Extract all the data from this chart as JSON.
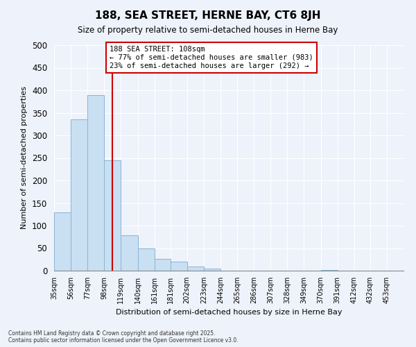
{
  "title": "188, SEA STREET, HERNE BAY, CT6 8JH",
  "subtitle": "Size of property relative to semi-detached houses in Herne Bay",
  "xlabel": "Distribution of semi-detached houses by size in Herne Bay",
  "ylabel": "Number of semi-detached properties",
  "bin_labels": [
    "35sqm",
    "56sqm",
    "77sqm",
    "98sqm",
    "119sqm",
    "140sqm",
    "161sqm",
    "181sqm",
    "202sqm",
    "223sqm",
    "244sqm",
    "265sqm",
    "286sqm",
    "307sqm",
    "328sqm",
    "349sqm",
    "370sqm",
    "391sqm",
    "412sqm",
    "432sqm",
    "453sqm"
  ],
  "bin_edges": [
    35,
    56,
    77,
    98,
    119,
    140,
    161,
    181,
    202,
    223,
    244,
    265,
    286,
    307,
    328,
    349,
    370,
    391,
    412,
    432,
    453,
    474
  ],
  "bar_values": [
    130,
    335,
    390,
    245,
    79,
    50,
    26,
    20,
    10,
    4,
    0,
    0,
    0,
    0,
    0,
    0,
    1,
    0,
    0,
    0,
    0
  ],
  "bar_color": "#c9dff2",
  "bar_edge_color": "#8ab4d4",
  "vline_x": 108,
  "vline_color": "#cc0000",
  "annotation_line1": "188 SEA STREET: 108sqm",
  "annotation_line2": "← 77% of semi-detached houses are smaller (983)",
  "annotation_line3": "23% of semi-detached houses are larger (292) →",
  "annotation_box_color": "white",
  "annotation_box_edge": "#cc0000",
  "ylim": [
    0,
    500
  ],
  "background_color": "#eef2fb",
  "grid_color": "white",
  "footer_line1": "Contains HM Land Registry data © Crown copyright and database right 2025.",
  "footer_line2": "Contains public sector information licensed under the Open Government Licence v3.0."
}
